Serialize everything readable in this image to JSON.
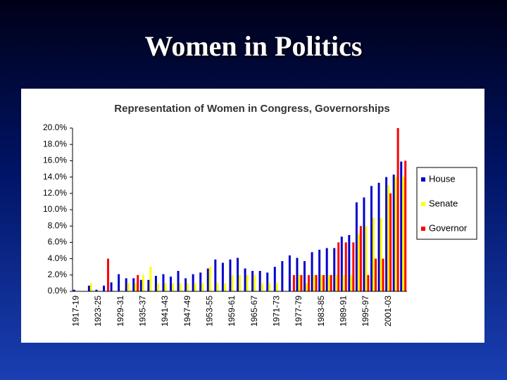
{
  "slide_title": "Women in Politics",
  "chart_data": {
    "type": "bar",
    "title": "Representation of Women in Congress, Governorships",
    "categories": [
      "1917-19",
      null,
      null,
      "1923-25",
      null,
      null,
      "1929-31",
      null,
      null,
      "1935-37",
      null,
      null,
      "1941-43",
      null,
      null,
      "1947-49",
      null,
      null,
      "1953-55",
      null,
      null,
      "1959-61",
      null,
      null,
      "1965-67",
      null,
      null,
      "1971-73",
      null,
      null,
      "1977-79",
      null,
      null,
      "1983-85",
      null,
      null,
      "1989-91",
      null,
      null,
      "1995-97",
      null,
      null,
      "2001-03",
      null,
      null
    ],
    "series": [
      {
        "name": "House",
        "color": "#0000cc",
        "values": [
          0.2,
          0,
          0.7,
          0.2,
          0.7,
          1.1,
          2.1,
          1.6,
          1.6,
          1.4,
          1.4,
          1.9,
          2.1,
          1.8,
          2.5,
          1.6,
          2.1,
          2.3,
          2.8,
          3.9,
          3.5,
          3.9,
          4.1,
          2.8,
          2.5,
          2.5,
          2.3,
          3.0,
          3.7,
          4.4,
          4.1,
          3.7,
          4.8,
          5.1,
          5.3,
          5.3,
          6.7,
          6.9,
          10.9,
          11.5,
          12.9,
          13.3,
          14.0,
          14.3,
          15.9
        ]
      },
      {
        "name": "Senate",
        "color": "#ffff00",
        "values": [
          0,
          0,
          1,
          0,
          0,
          0,
          0,
          1,
          1,
          2,
          3,
          1,
          1,
          1,
          1,
          1,
          1,
          1,
          3,
          1,
          1,
          2,
          2,
          2,
          2,
          1,
          1,
          1,
          0,
          0,
          2,
          1,
          2,
          2,
          2,
          2,
          2,
          2,
          7,
          8,
          9,
          9,
          13,
          14,
          14
        ]
      },
      {
        "name": "Governor",
        "color": "#ff0000",
        "values": [
          0,
          0,
          0,
          0,
          4,
          0,
          0,
          0,
          2,
          0,
          0,
          0,
          0,
          0,
          0,
          0,
          0,
          0,
          0,
          0,
          0,
          0,
          0,
          0,
          0,
          0,
          0,
          0,
          0,
          2,
          2,
          2,
          2,
          2,
          2,
          6,
          6,
          6,
          8,
          2,
          4,
          4,
          12,
          20,
          16
        ]
      }
    ],
    "ylim": [
      0,
      20
    ],
    "yticks": [
      {
        "value": 0,
        "label": "0.0%"
      },
      {
        "value": 2,
        "label": "2.0%"
      },
      {
        "value": 4,
        "label": "4.0%"
      },
      {
        "value": 6,
        "label": "6.0%"
      },
      {
        "value": 8,
        "label": "8.0%"
      },
      {
        "value": 10,
        "label": "10.0%"
      },
      {
        "value": 12,
        "label": "12.0%"
      },
      {
        "value": 14,
        "label": "14.0%"
      },
      {
        "value": 16,
        "label": "16.0%"
      },
      {
        "value": 18,
        "label": "18.0%"
      },
      {
        "value": 20,
        "label": "20.0%"
      }
    ],
    "grid": false,
    "legend": "right"
  }
}
